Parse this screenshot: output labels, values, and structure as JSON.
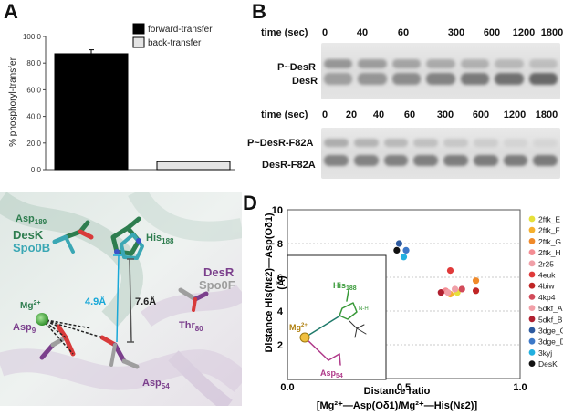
{
  "panels": {
    "A": "A",
    "B": "B",
    "C": "C",
    "D": "D"
  },
  "panelA": {
    "chart_data": {
      "type": "bar",
      "categories": [
        "forward-transfer",
        "back-transfer"
      ],
      "values": [
        87.0,
        6.0
      ],
      "errors": [
        3.0,
        0.3
      ],
      "ylabel": "% phosphoryl-transfer",
      "yticks": [
        "0.0",
        "20.0",
        "40.0",
        "60.0",
        "80.0",
        "100.0"
      ],
      "ylim": [
        0,
        100
      ],
      "legend": [
        "forward-transfer",
        "back-transfer"
      ],
      "colors": [
        "#000000",
        "#e4e4e4"
      ]
    }
  },
  "panelB": {
    "top": {
      "time_label": "time (sec)",
      "times": [
        "0",
        "40",
        "60",
        "300",
        "600",
        "1200",
        "1800"
      ],
      "band_labels": [
        "P~DesR",
        "DesR"
      ]
    },
    "bottom": {
      "time_label": "time (sec)",
      "times": [
        "0",
        "20",
        "40",
        "60",
        "300",
        "600",
        "1200",
        "1800"
      ],
      "band_labels": [
        "P~DesR-F82A",
        "DesR-F82A"
      ]
    }
  },
  "panelC": {
    "labels": {
      "asp189": "Asp",
      "asp189_sub": "189",
      "desk": "DesK",
      "spo0b": "Spo0B",
      "his188": "His",
      "his188_sub": "188",
      "mg": "Mg",
      "mg_sup": "2+",
      "dist1": "4.9Å",
      "dist2": "7.6Å",
      "desr": "DesR",
      "spo0f": "Spo0F",
      "asp9": "Asp",
      "asp9_sub": "9",
      "thr80": "Thr",
      "thr80_sub": "80",
      "asp54": "Asp",
      "asp54_sub": "54"
    },
    "colors": {
      "desk": "#2e7d4f",
      "spo0b": "#3aa7b4",
      "desr": "#7b3f8c",
      "spo0f": "#9e9e9e",
      "distance": "#19a8d8"
    }
  },
  "panelD": {
    "chart_data": {
      "type": "scatter",
      "xlabel_line1": "Distance ratio",
      "xlabel_line2": "[Mg²⁺—Asp(Oδ1)/Mg²⁺—His(Nε2)]",
      "ylabel_line1": "Distance His(Nε2)—Asp(Oδ1)",
      "ylabel_line2": "(Å)",
      "xlim": [
        0,
        1
      ],
      "ylim": [
        0,
        10
      ],
      "xticks": [
        "0.0",
        "0.5",
        "1.0"
      ],
      "yticks": [
        "2",
        "4",
        "6",
        "8",
        "10"
      ],
      "series": [
        {
          "name": "2ftk_E",
          "color": "#e6e03a",
          "x": 0.73,
          "y": 5.1
        },
        {
          "name": "2ftk_F",
          "color": "#f6b02e",
          "x": 0.7,
          "y": 5.0
        },
        {
          "name": "2ftk_G",
          "color": "#f08a2a",
          "x": 0.81,
          "y": 5.8
        },
        {
          "name": "2ftk_H",
          "color": "#f48d94",
          "x": 0.68,
          "y": 5.2
        },
        {
          "name": "2r25",
          "color": "#f0a0a8",
          "x": 0.72,
          "y": 5.3
        },
        {
          "name": "4euk",
          "color": "#e03a3a",
          "x": 0.7,
          "y": 6.4
        },
        {
          "name": "4biw",
          "color": "#c02525",
          "x": 0.81,
          "y": 5.2
        },
        {
          "name": "4kp4",
          "color": "#d24b5a",
          "x": 0.75,
          "y": 5.3
        },
        {
          "name": "5dkf_A",
          "color": "#f2a0a8",
          "x": 0.69,
          "y": 5.1
        },
        {
          "name": "5dkf_B",
          "color": "#b02030",
          "x": 0.66,
          "y": 5.1
        },
        {
          "name": "3dge_C",
          "color": "#2d5aa0",
          "x": 0.48,
          "y": 8.0
        },
        {
          "name": "3dge_D",
          "color": "#3c78c8",
          "x": 0.51,
          "y": 7.6
        },
        {
          "name": "3kyj",
          "color": "#22b0e0",
          "x": 0.5,
          "y": 7.2
        },
        {
          "name": "DesK",
          "color": "#111111",
          "x": 0.47,
          "y": 7.6
        }
      ]
    },
    "inset": {
      "his": "His",
      "his_sub": "188",
      "mg": "Mg",
      "mg_sup": "2+",
      "asp": "Asp",
      "asp_sub": "54",
      "nh": "N-H"
    }
  }
}
